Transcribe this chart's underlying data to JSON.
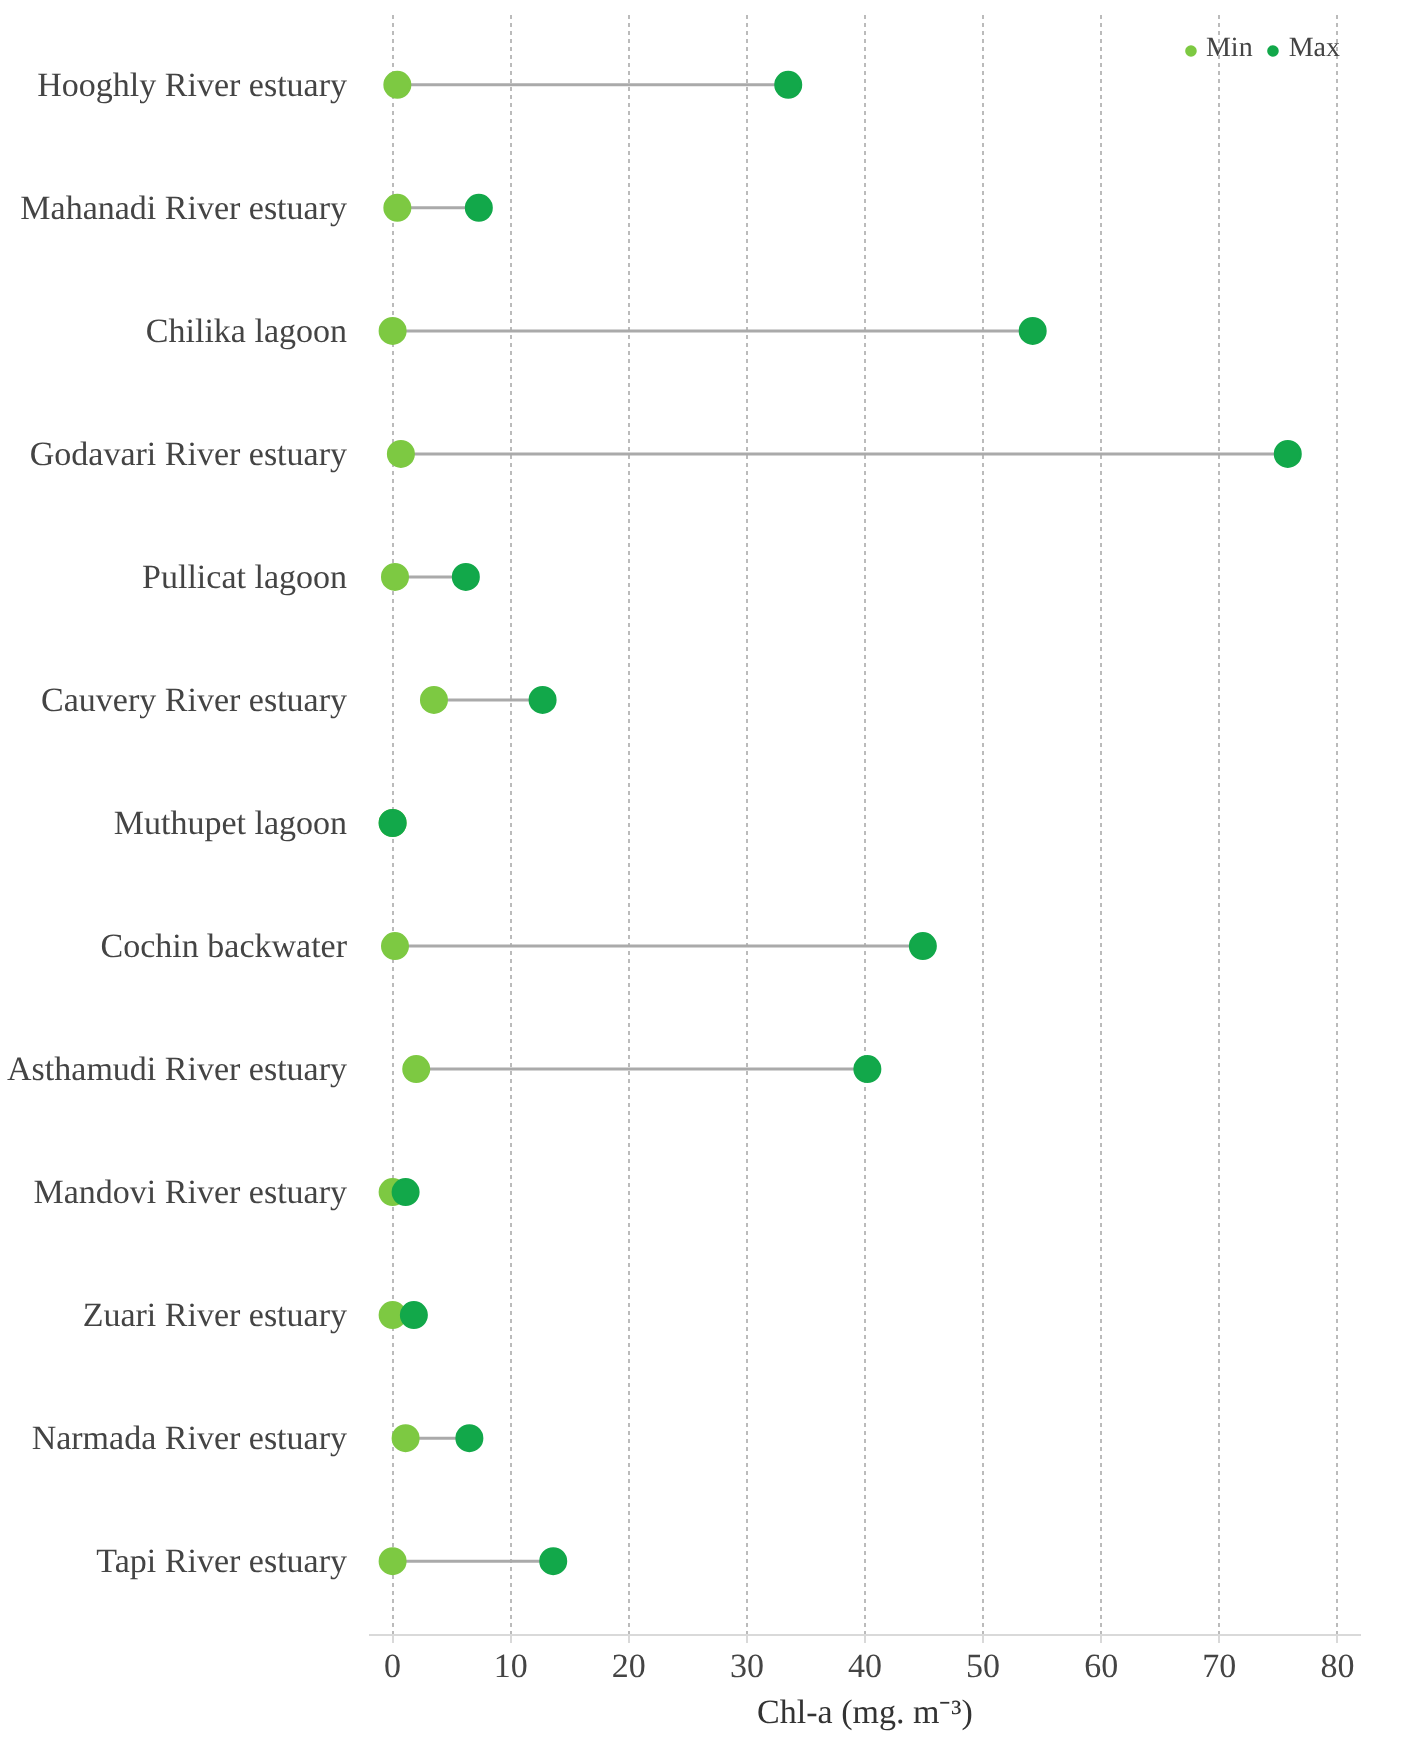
{
  "chart_data": {
    "type": "scatter",
    "orientation": "horizontal",
    "xlabel": "Chl-a (mg. m⁻³)",
    "categories": [
      "Hooghly River estuary",
      "Mahanadi River estuary",
      "Chilika lagoon",
      "Godavari River estuary",
      "Pullicat lagoon",
      "Cauvery River estuary",
      "Muthupet lagoon",
      "Cochin backwater",
      "Asthamudi River estuary",
      "Mandovi River estuary",
      "Zuari River estuary",
      "Narmada River estuary",
      "Tapi River estuary"
    ],
    "series": [
      {
        "name": "Min",
        "color": "#7dc942",
        "values": [
          0.4,
          0.4,
          0,
          0.7,
          0.2,
          3.5,
          0,
          0.2,
          2,
          0,
          0,
          1.1,
          0
        ]
      },
      {
        "name": "Max",
        "color": "#12a84a",
        "values": [
          33.5,
          7.3,
          54.2,
          75.8,
          6.2,
          12.7,
          0,
          44.9,
          40.2,
          1.1,
          1.8,
          6.5,
          13.6
        ]
      }
    ],
    "xlim": [
      -2,
      82
    ],
    "xticks": [
      0,
      10,
      20,
      30,
      40,
      50,
      60,
      70,
      80
    ],
    "grid": "x",
    "legend": "top right",
    "marker": "circle"
  }
}
